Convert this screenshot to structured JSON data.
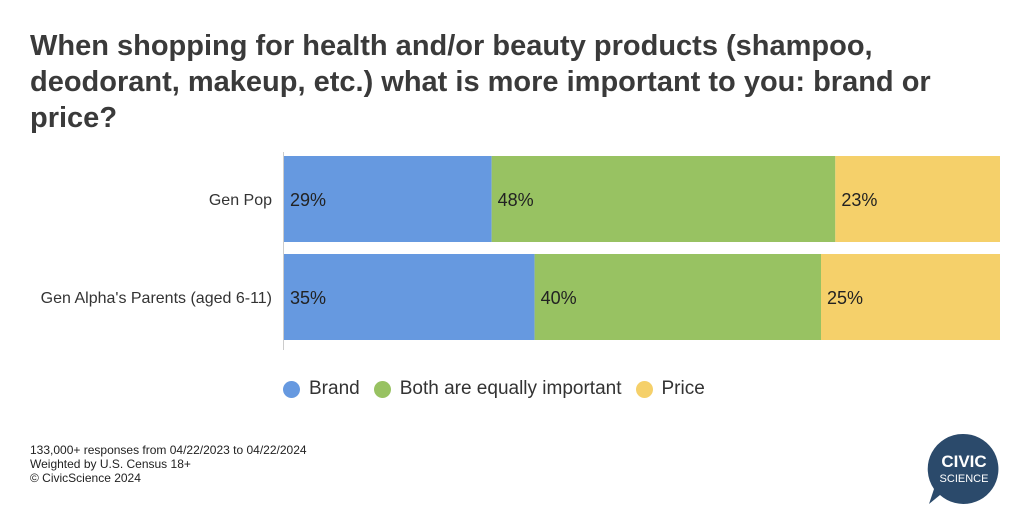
{
  "title": "When shopping for health and/or beauty products (shampoo, deodorant, makeup, etc.) what is more important to you: brand or price?",
  "chart_data": {
    "type": "bar",
    "orientation": "horizontal",
    "stacked": true,
    "title": "When shopping for health and/or beauty products (shampoo, deodorant, makeup, etc.) what is more important to you: brand or price?",
    "categories": [
      "Gen Pop",
      "Gen Alpha's Parents (aged 6-11)"
    ],
    "series": [
      {
        "name": "Brand",
        "values": [
          29,
          35
        ],
        "labels": [
          "29%",
          "35%"
        ],
        "color": "#6699e0"
      },
      {
        "name": "Both are equally important",
        "values": [
          48,
          40
        ],
        "labels": [
          "48%",
          "40%"
        ],
        "color": "#98c262"
      },
      {
        "name": "Price",
        "values": [
          23,
          25
        ],
        "labels": [
          "23%",
          "25%"
        ],
        "color": "#f5d06a"
      }
    ],
    "xlim": [
      0,
      100
    ],
    "grid": false,
    "legend": "bottom"
  },
  "legend": {
    "items": [
      {
        "label": "Brand",
        "color": "#6699e0"
      },
      {
        "label": "Both are equally important",
        "color": "#98c262"
      },
      {
        "label": "Price",
        "color": "#f5d06a"
      }
    ]
  },
  "footnote": {
    "line1": "133,000+ responses from 04/22/2023 to 04/22/2024",
    "line2": "Weighted by U.S. Census 18+",
    "line3": "© CivicScience 2024"
  },
  "logo": {
    "line1": "CIVIC",
    "line2": "SCIENCE",
    "color": "#2b4a6b"
  }
}
